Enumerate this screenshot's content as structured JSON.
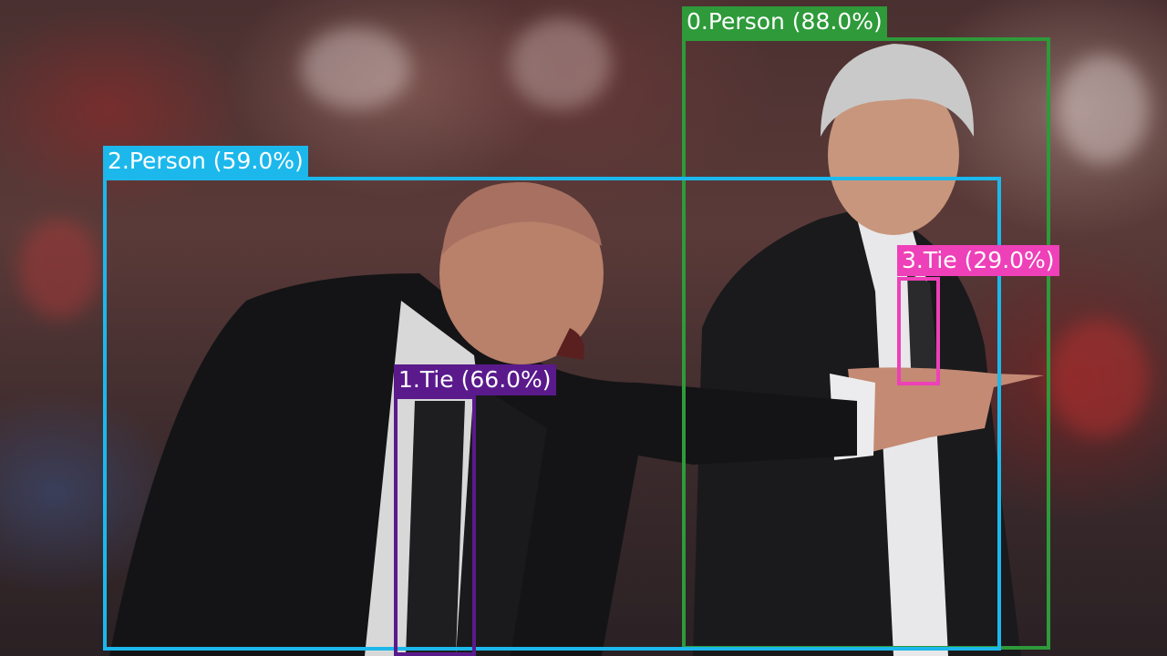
{
  "detections": [
    {
      "label": "0.Person (88.0%)",
      "color": "#2e9a3a"
    },
    {
      "label": "1.Tie (66.0%)",
      "color": "#5a1a8c"
    },
    {
      "label": "2.Person (59.0%)",
      "color": "#1cb8ec"
    },
    {
      "label": "3.Tie (29.0%)",
      "color": "#ee40b8"
    }
  ]
}
